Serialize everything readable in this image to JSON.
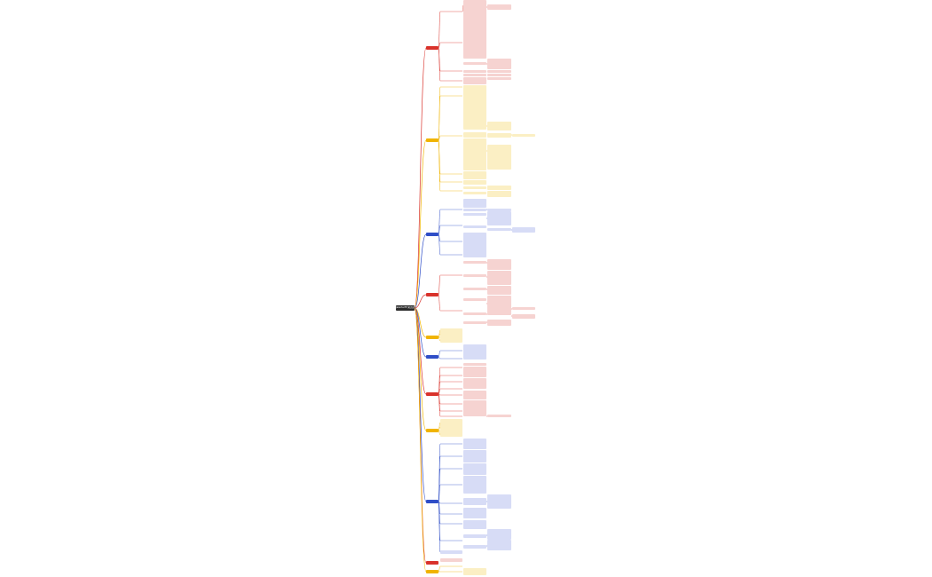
{
  "mindmap": {
    "root": {
      "label": "Jakarta EE 知识总结"
    },
    "branches": [
      {
        "color": "red",
        "label": ""
      },
      {
        "color": "yellow",
        "label": ""
      },
      {
        "color": "blue",
        "label": ""
      },
      {
        "color": "red",
        "label": ""
      },
      {
        "color": "yellow",
        "label": ""
      },
      {
        "color": "blue",
        "label": ""
      },
      {
        "color": "red",
        "label": ""
      },
      {
        "color": "yellow",
        "label": ""
      },
      {
        "color": "blue",
        "label": ""
      },
      {
        "color": "red",
        "label": ""
      },
      {
        "color": "yellow",
        "label": ""
      }
    ],
    "colors": {
      "red": "#d9322b",
      "red_light": "#f6d3d1",
      "yellow": "#f0b400",
      "yellow_light": "#fbefc4",
      "blue": "#2f4ec7",
      "blue_light": "#d7dcf6",
      "root": "#2b2b2b"
    }
  }
}
